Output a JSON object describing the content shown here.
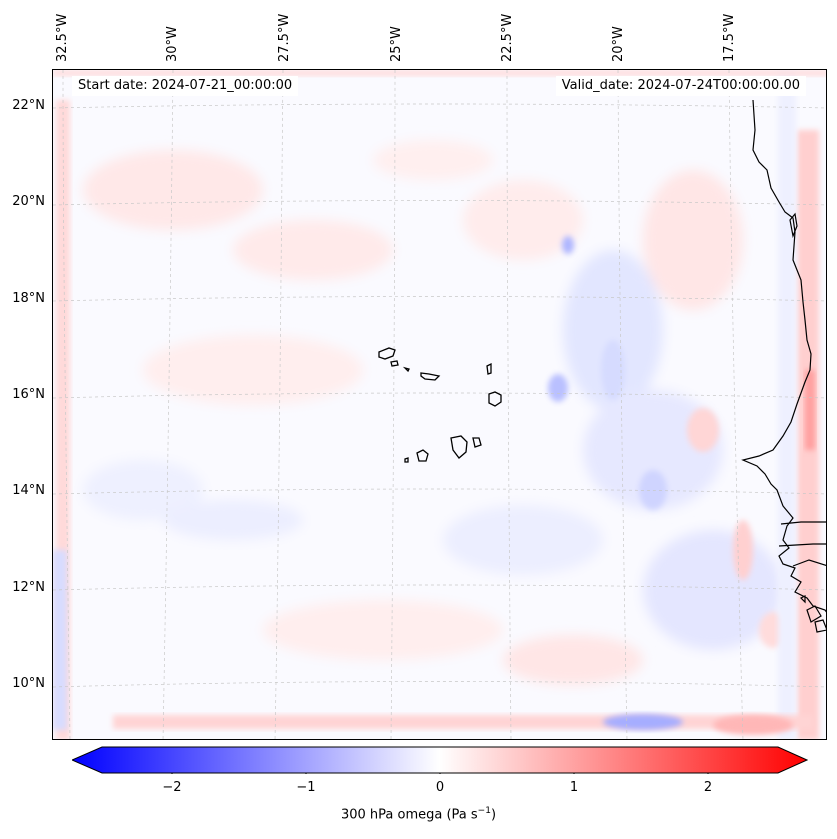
{
  "map": {
    "start_date": "Start date: 2024-07-21_00:00:00",
    "valid_date": "Valid_date: 2024-07-24T00:00:00.00",
    "lon_labels": [
      "32.5°W",
      "30°W",
      "27.5°W",
      "25°W",
      "22.5°W",
      "20°W",
      "17.5°W"
    ],
    "lat_labels": [
      "22°N",
      "20°N",
      "18°N",
      "16°N",
      "14°N",
      "12°N",
      "10°N"
    ]
  },
  "colorbar": {
    "ticks": [
      "−2",
      "−1",
      "0",
      "1",
      "2"
    ],
    "label": "300 hPa omega (Pa s",
    "label_sup": "−1",
    "label_end": ")",
    "colors": {
      "neg": "#0000ff",
      "mid": "#ffffff",
      "pos": "#ff0000"
    }
  }
}
